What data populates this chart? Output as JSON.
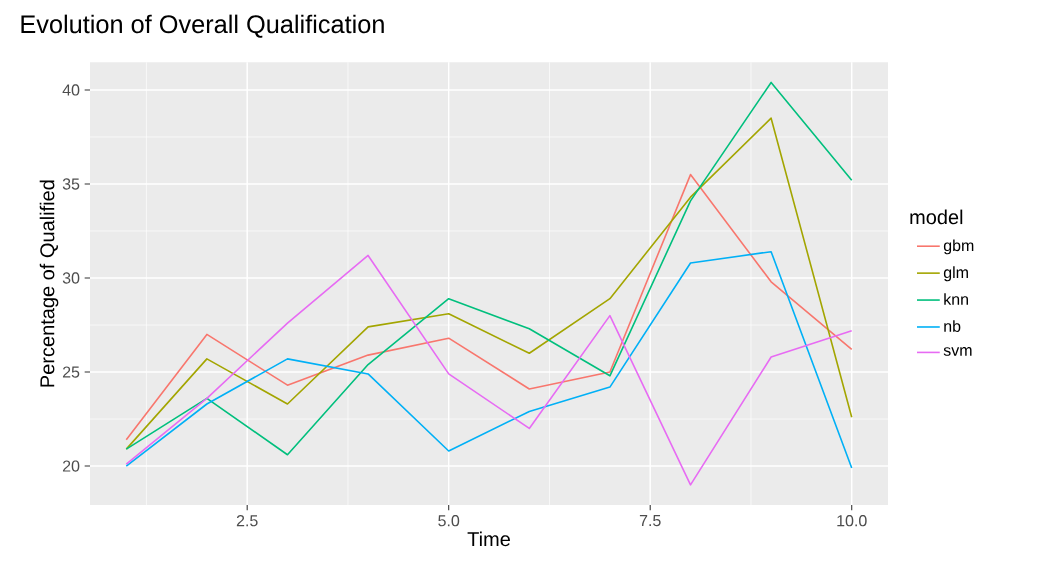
{
  "chart_data": {
    "type": "line",
    "title": "Evolution of Overall Qualification",
    "xlabel": "Time",
    "ylabel": "Percentage of Qualified",
    "legend_title": "model",
    "x": [
      1,
      2,
      3,
      4,
      5,
      6,
      7,
      8,
      9,
      10
    ],
    "series": [
      {
        "name": "gbm",
        "color": "#f8766d",
        "values": [
          21.4,
          27.0,
          24.3,
          25.9,
          26.8,
          24.1,
          25.0,
          35.5,
          29.8,
          26.2
        ]
      },
      {
        "name": "glm",
        "color": "#a3a500",
        "values": [
          20.9,
          25.7,
          23.3,
          27.4,
          28.1,
          26.0,
          28.9,
          34.3,
          38.5,
          22.6
        ]
      },
      {
        "name": "knn",
        "color": "#00bf7d",
        "values": [
          20.9,
          23.6,
          20.6,
          25.4,
          28.9,
          27.3,
          24.8,
          34.1,
          40.4,
          35.2
        ]
      },
      {
        "name": "nb",
        "color": "#00b0f6",
        "values": [
          20.0,
          23.3,
          25.7,
          24.9,
          20.8,
          22.9,
          24.2,
          30.8,
          31.4,
          19.9
        ]
      },
      {
        "name": "svm",
        "color": "#e76bf3",
        "values": [
          20.1,
          23.6,
          27.6,
          31.2,
          24.9,
          22.0,
          28.0,
          19.0,
          25.8,
          27.2
        ]
      }
    ],
    "xlim": [
      0.55,
      10.45
    ],
    "ylim": [
      17.93,
      41.47
    ],
    "xticks": [
      {
        "value": 2.5,
        "label": "2.5"
      },
      {
        "value": 5,
        "label": "5.0"
      },
      {
        "value": 7.5,
        "label": "7.5"
      },
      {
        "value": 10,
        "label": "10.0"
      }
    ],
    "yticks": [
      20,
      25,
      30,
      35,
      40
    ],
    "grid": true,
    "legend": "right",
    "marker": "none",
    "line_style": "solid"
  }
}
